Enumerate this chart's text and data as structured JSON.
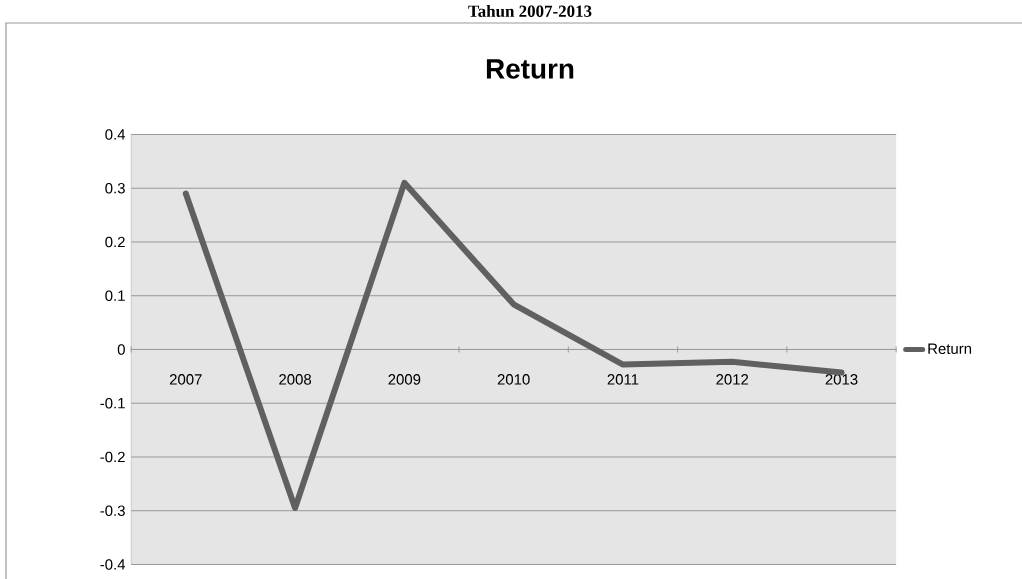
{
  "chart_data": {
    "type": "line",
    "title": "Return",
    "annotations": [
      "Tahun 2007-2013"
    ],
    "categories": [
      "2007",
      "2008",
      "2009",
      "2010",
      "2011",
      "2012",
      "2013"
    ],
    "series": [
      {
        "name": "Return",
        "color": "#606060",
        "values": [
          0.29,
          -0.295,
          0.31,
          0.084,
          -0.028,
          -0.023,
          -0.043
        ]
      }
    ],
    "ylim": [
      -0.4,
      0.4
    ],
    "yticks": [
      -0.4,
      -0.3,
      -0.2,
      -0.1,
      0,
      0.1,
      0.2,
      0.3,
      0.4
    ],
    "grid": "y",
    "legend": "right"
  }
}
